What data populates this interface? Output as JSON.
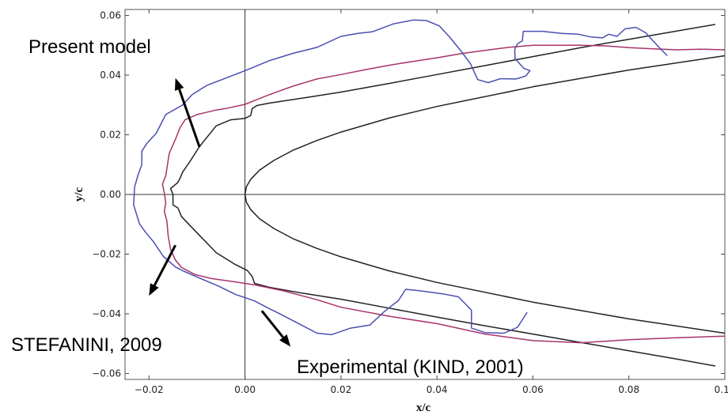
{
  "chart_data": {
    "type": "line",
    "xlabel": "x/c",
    "ylabel": "y/c",
    "xlim": [
      -0.025,
      0.1
    ],
    "ylim": [
      -0.062,
      0.062
    ],
    "x_ticks": [
      -0.02,
      0.0,
      0.02,
      0.04,
      0.06,
      0.08,
      0.1
    ],
    "x_tick_labels": [
      "−0.02",
      "0.00",
      "0.02",
      "0.04",
      "0.06",
      "0.08",
      "0.10"
    ],
    "y_ticks": [
      0.06,
      0.04,
      0.02,
      0.0,
      -0.02,
      -0.04,
      -0.06
    ],
    "y_tick_labels": [
      "0.06",
      "0.04",
      "0.02",
      "0.00",
      "−0.02",
      "−0.04",
      "−0.06"
    ],
    "reference_lines": [
      {
        "axis": "x",
        "value": 0
      },
      {
        "axis": "y",
        "value": 0
      }
    ],
    "grid": false,
    "annotations": [
      {
        "text": "Present model",
        "arrow_from": [
          -0.0095,
          0.016
        ],
        "arrow_to": [
          -0.0145,
          0.039
        ]
      },
      {
        "text": "STEFANINI, 2009",
        "arrow_from": [
          -0.0145,
          -0.017
        ],
        "arrow_to": [
          -0.02,
          -0.034
        ]
      },
      {
        "text": "Experimental (KIND, 2001)",
        "arrow_from": [
          0.0035,
          -0.039
        ],
        "arrow_to": [
          0.0095,
          -0.051
        ]
      }
    ],
    "series": [
      {
        "color": "#222222",
        "points": [
          [
            0.1,
            0.0465
          ],
          [
            0.08,
            0.0417
          ],
          [
            0.06,
            0.0361
          ],
          [
            0.04,
            0.0295
          ],
          [
            0.03,
            0.0256
          ],
          [
            0.02,
            0.0209
          ],
          [
            0.015,
            0.0181
          ],
          [
            0.01,
            0.0148
          ],
          [
            0.006,
            0.0114
          ],
          [
            0.003,
            0.0081
          ],
          [
            0.0012,
            0.0051
          ],
          [
            0.0003,
            0.0026
          ],
          [
            0.0,
            0.0
          ],
          [
            0.0003,
            -0.0026
          ],
          [
            0.0012,
            -0.0051
          ],
          [
            0.003,
            -0.0081
          ],
          [
            0.006,
            -0.0114
          ],
          [
            0.01,
            -0.0148
          ],
          [
            0.015,
            -0.0181
          ],
          [
            0.02,
            -0.0209
          ],
          [
            0.03,
            -0.0256
          ],
          [
            0.04,
            -0.0295
          ],
          [
            0.06,
            -0.0361
          ],
          [
            0.08,
            -0.0417
          ],
          [
            0.1,
            -0.0465
          ]
        ]
      },
      {
        "color": "#222222",
        "points": [
          [
            0.098,
            0.057
          ],
          [
            0.09,
            0.0548
          ],
          [
            0.08,
            0.052
          ],
          [
            0.07,
            0.0492
          ],
          [
            0.06,
            0.0462
          ],
          [
            0.05,
            0.0432
          ],
          [
            0.04,
            0.0402
          ],
          [
            0.03,
            0.0372
          ],
          [
            0.02,
            0.0343
          ],
          [
            0.012,
            0.0323
          ],
          [
            0.005,
            0.0306
          ],
          [
            0.0025,
            0.0298
          ],
          [
            0.0015,
            0.0288
          ],
          [
            0.0012,
            0.0265
          ],
          [
            0.0,
            0.0255
          ],
          [
            -0.003,
            0.025
          ],
          [
            -0.006,
            0.023
          ],
          [
            -0.0095,
            0.016
          ],
          [
            -0.0115,
            0.011
          ],
          [
            -0.013,
            0.0075
          ],
          [
            -0.0135,
            0.0055
          ],
          [
            -0.014,
            0.004
          ],
          [
            -0.0155,
            0.002
          ],
          [
            -0.015,
            0.0
          ],
          [
            -0.015,
            -0.0035
          ],
          [
            -0.014,
            -0.0045
          ],
          [
            -0.0132,
            -0.0075
          ],
          [
            -0.0105,
            -0.012
          ],
          [
            -0.006,
            -0.0195
          ],
          [
            -0.002,
            -0.0235
          ],
          [
            0.0005,
            -0.0255
          ],
          [
            0.0015,
            -0.0275
          ],
          [
            0.002,
            -0.0298
          ],
          [
            0.005,
            -0.0311
          ],
          [
            0.012,
            -0.0331
          ],
          [
            0.02,
            -0.0351
          ],
          [
            0.03,
            -0.0381
          ],
          [
            0.04,
            -0.0411
          ],
          [
            0.05,
            -0.044
          ],
          [
            0.06,
            -0.0468
          ],
          [
            0.07,
            -0.0496
          ],
          [
            0.08,
            -0.0524
          ],
          [
            0.09,
            -0.0552
          ],
          [
            0.098,
            -0.0575
          ]
        ]
      },
      {
        "color": "#a8336a",
        "points": [
          [
            0.1,
            0.0485
          ],
          [
            0.095,
            0.0487
          ],
          [
            0.09,
            0.0485
          ],
          [
            0.085,
            0.0488
          ],
          [
            0.08,
            0.0492
          ],
          [
            0.075,
            0.0498
          ],
          [
            0.07,
            0.05
          ],
          [
            0.065,
            0.05
          ],
          [
            0.06,
            0.05
          ],
          [
            0.055,
            0.0493
          ],
          [
            0.05,
            0.0483
          ],
          [
            0.045,
            0.0472
          ],
          [
            0.04,
            0.0458
          ],
          [
            0.035,
            0.0446
          ],
          [
            0.03,
            0.0433
          ],
          [
            0.025,
            0.0418
          ],
          [
            0.02,
            0.0402
          ],
          [
            0.015,
            0.0387
          ],
          [
            0.01,
            0.0363
          ],
          [
            0.005,
            0.0334
          ],
          [
            0.0,
            0.0302
          ],
          [
            -0.004,
            0.0288
          ],
          [
            -0.006,
            0.0283
          ],
          [
            -0.01,
            0.0268
          ],
          [
            -0.0125,
            0.025
          ],
          [
            -0.0135,
            0.0225
          ],
          [
            -0.0145,
            0.0185
          ],
          [
            -0.0158,
            0.0137
          ],
          [
            -0.0162,
            0.0095
          ],
          [
            -0.0165,
            0.0063
          ],
          [
            -0.0172,
            0.0035
          ],
          [
            -0.0168,
            0.0005
          ],
          [
            -0.0165,
            -0.0028
          ],
          [
            -0.0168,
            -0.0057
          ],
          [
            -0.0163,
            -0.0088
          ],
          [
            -0.016,
            -0.014
          ],
          [
            -0.0155,
            -0.0185
          ],
          [
            -0.0145,
            -0.022
          ],
          [
            -0.0132,
            -0.0245
          ],
          [
            -0.0105,
            -0.0268
          ],
          [
            -0.007,
            -0.0282
          ],
          [
            -0.002,
            -0.0293
          ],
          [
            0.002,
            -0.0303
          ],
          [
            0.008,
            -0.0323
          ],
          [
            0.015,
            -0.0353
          ],
          [
            0.02,
            -0.0378
          ],
          [
            0.03,
            -0.0408
          ],
          [
            0.04,
            -0.0433
          ],
          [
            0.05,
            -0.0468
          ],
          [
            0.06,
            -0.049
          ],
          [
            0.07,
            -0.0497
          ],
          [
            0.08,
            -0.0487
          ],
          [
            0.09,
            -0.048
          ],
          [
            0.1,
            -0.0475
          ]
        ]
      },
      {
        "color": "#4a4fb0",
        "points": [
          [
            0.088,
            0.0465
          ],
          [
            0.086,
            0.0498
          ],
          [
            0.0835,
            0.0542
          ],
          [
            0.0815,
            0.056
          ],
          [
            0.0792,
            0.0555
          ],
          [
            0.0775,
            0.053
          ],
          [
            0.0758,
            0.0537
          ],
          [
            0.0745,
            0.0525
          ],
          [
            0.072,
            0.0528
          ],
          [
            0.0695,
            0.0537
          ],
          [
            0.066,
            0.054
          ],
          [
            0.062,
            0.0547
          ],
          [
            0.058,
            0.0547
          ],
          [
            0.0578,
            0.0515
          ],
          [
            0.0568,
            0.0505
          ],
          [
            0.0562,
            0.0486
          ],
          [
            0.0563,
            0.0455
          ],
          [
            0.0581,
            0.0423
          ],
          [
            0.0594,
            0.0415
          ],
          [
            0.0585,
            0.0397
          ],
          [
            0.0565,
            0.0387
          ],
          [
            0.0532,
            0.0388
          ],
          [
            0.0507,
            0.0375
          ],
          [
            0.0485,
            0.0385
          ],
          [
            0.047,
            0.0438
          ],
          [
            0.0452,
            0.0477
          ],
          [
            0.0428,
            0.0525
          ],
          [
            0.0405,
            0.0565
          ],
          [
            0.0378,
            0.0583
          ],
          [
            0.0352,
            0.0585
          ],
          [
            0.031,
            0.0572
          ],
          [
            0.0265,
            0.0545
          ],
          [
            0.0235,
            0.054
          ],
          [
            0.02,
            0.053
          ],
          [
            0.015,
            0.0493
          ],
          [
            0.01,
            0.0473
          ],
          [
            0.005,
            0.0448
          ],
          [
            0.0,
            0.0415
          ],
          [
            -0.004,
            0.039
          ],
          [
            -0.008,
            0.0365
          ],
          [
            -0.011,
            0.0335
          ],
          [
            -0.013,
            0.03
          ],
          [
            -0.0165,
            0.0268
          ],
          [
            -0.0185,
            0.0205
          ],
          [
            -0.0205,
            0.017
          ],
          [
            -0.0215,
            0.0145
          ],
          [
            -0.0215,
            0.01
          ],
          [
            -0.0223,
            0.0065
          ],
          [
            -0.023,
            0.0025
          ],
          [
            -0.0232,
            -0.0035
          ],
          [
            -0.022,
            -0.0098
          ],
          [
            -0.0208,
            -0.0125
          ],
          [
            -0.019,
            -0.016
          ],
          [
            -0.017,
            -0.0208
          ],
          [
            -0.0145,
            -0.0243
          ],
          [
            -0.0128,
            -0.0257
          ],
          [
            -0.0095,
            -0.028
          ],
          [
            -0.0055,
            -0.0307
          ],
          [
            -0.002,
            -0.0335
          ],
          [
            0.002,
            -0.0357
          ],
          [
            0.0045,
            -0.0378
          ],
          [
            0.007,
            -0.0398
          ],
          [
            0.0105,
            -0.0427
          ],
          [
            0.015,
            -0.0465
          ],
          [
            0.018,
            -0.047
          ],
          [
            0.022,
            -0.0448
          ],
          [
            0.026,
            -0.0438
          ],
          [
            0.029,
            -0.0393
          ],
          [
            0.032,
            -0.0355
          ],
          [
            0.0335,
            -0.0318
          ],
          [
            0.0365,
            -0.0323
          ],
          [
            0.0412,
            -0.0333
          ],
          [
            0.0445,
            -0.0343
          ],
          [
            0.0472,
            -0.0388
          ],
          [
            0.0472,
            -0.0448
          ],
          [
            0.05,
            -0.0463
          ],
          [
            0.054,
            -0.0465
          ],
          [
            0.0568,
            -0.0445
          ],
          [
            0.0588,
            -0.0395
          ]
        ]
      }
    ]
  }
}
